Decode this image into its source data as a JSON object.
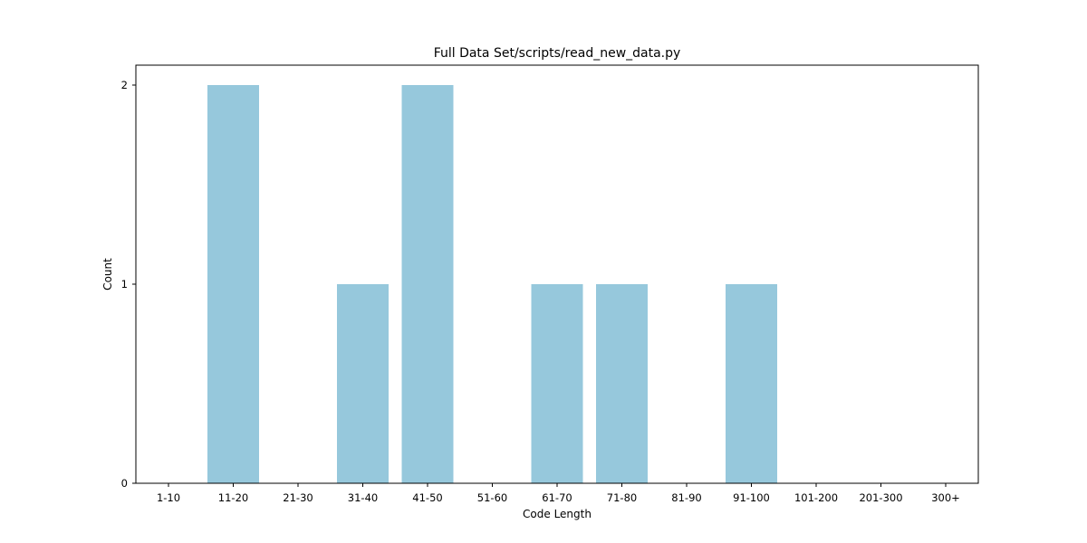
{
  "chart_data": {
    "type": "bar",
    "title": "Full Data Set/scripts/read_new_data.py",
    "xlabel": "Code Length",
    "ylabel": "Count",
    "categories": [
      "1-10",
      "11-20",
      "21-30",
      "31-40",
      "41-50",
      "51-60",
      "61-70",
      "71-80",
      "81-90",
      "91-100",
      "101-200",
      "201-300",
      "300+"
    ],
    "values": [
      0,
      2,
      0,
      1,
      2,
      0,
      1,
      1,
      0,
      1,
      0,
      0,
      0
    ],
    "yticks": [
      "0",
      "1",
      "2"
    ],
    "ylim": [
      0,
      2.1
    ],
    "grid": false,
    "bar_color": "#96c8dc"
  }
}
